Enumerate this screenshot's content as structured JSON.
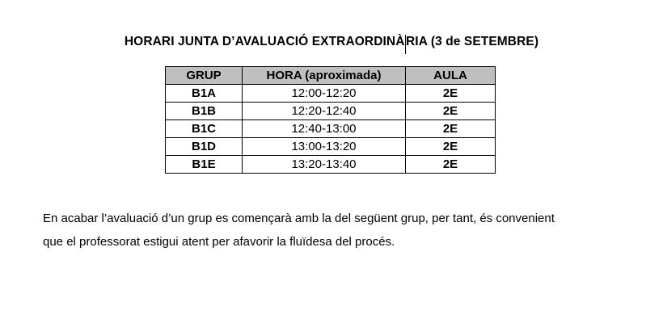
{
  "title": {
    "before_cursor": "HORARI JUNTA D’AVALUACIÓ EXTRAORDINÀ",
    "after_cursor": "RIA (3 de SETEMBRE)"
  },
  "table": {
    "headers": [
      "GRUP",
      "HORA (aproximada)",
      "AULA"
    ],
    "rows": [
      {
        "grup": "B1A",
        "hora": "12:00-12:20",
        "aula": "2E"
      },
      {
        "grup": "B1B",
        "hora": "12:20-12:40",
        "aula": "2E"
      },
      {
        "grup": "B1C",
        "hora": "12:40-13:00",
        "aula": "2E"
      },
      {
        "grup": "B1D",
        "hora": "13:00-13:20",
        "aula": "2E"
      },
      {
        "grup": "B1E",
        "hora": "13:20-13:40",
        "aula": "2E"
      }
    ]
  },
  "note": {
    "lines": [
      "En acabar l’avaluació d’un grup es començarà amb la del següent grup, per tant, és convenient",
      "que el professorat estigui atent per afavorir la fluïdesa del procés."
    ]
  },
  "colors": {
    "header_bg": "#bfbfbf",
    "border": "#000000",
    "text": "#000000",
    "page_bg": "#ffffff"
  }
}
